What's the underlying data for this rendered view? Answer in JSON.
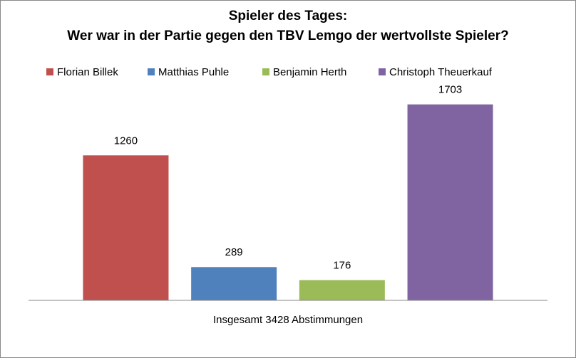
{
  "chart_data": {
    "type": "bar",
    "title": [
      "Spieler des Tages:",
      "Wer war in der Partie gegen den TBV Lemgo der wertvollste Spieler?"
    ],
    "categories": [
      "Insgesamt 3428 Abstimmungen"
    ],
    "series": [
      {
        "name": "Florian Billek",
        "color": "#c0504d",
        "values": [
          1260
        ]
      },
      {
        "name": "Matthias Puhle",
        "color": "#4f81bd",
        "values": [
          289
        ]
      },
      {
        "name": "Benjamin Herth",
        "color": "#9bbb59",
        "values": [
          176
        ]
      },
      {
        "name": "Christoph Theuerkauf",
        "color": "#8064a2",
        "values": [
          1703
        ]
      }
    ],
    "ylim": [
      0,
      1800
    ],
    "legend": "top"
  }
}
